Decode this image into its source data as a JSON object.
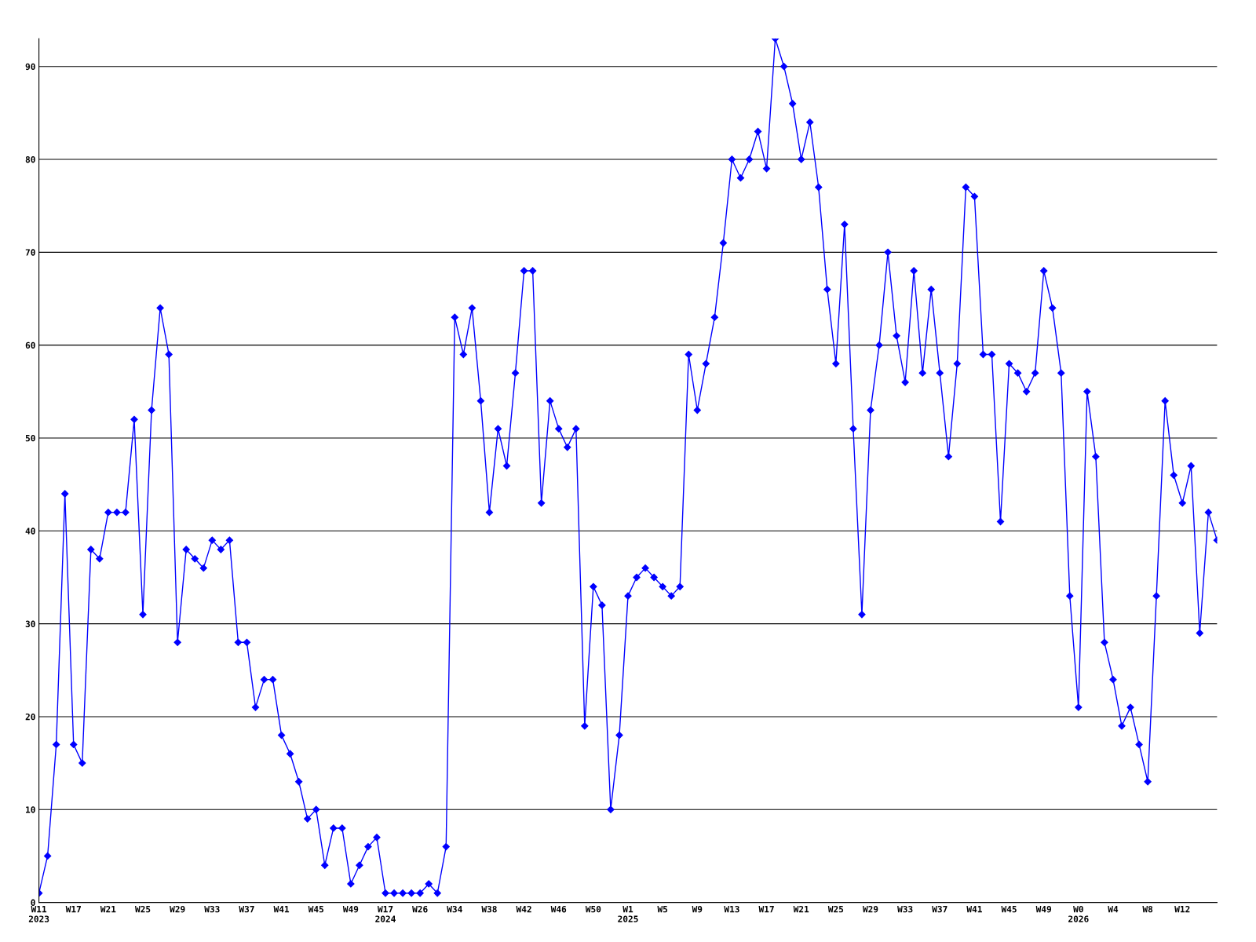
{
  "chart_data": {
    "type": "line",
    "categories": [
      "W11\n2023",
      null,
      null,
      null,
      "W17",
      null,
      null,
      null,
      "W21",
      null,
      null,
      null,
      "W25",
      null,
      null,
      null,
      "W29",
      null,
      null,
      null,
      "W33",
      null,
      null,
      null,
      "W37",
      null,
      null,
      null,
      "W41",
      null,
      null,
      null,
      "W45",
      null,
      null,
      null,
      "W49",
      null,
      null,
      null,
      "W17\n2024",
      null,
      null,
      null,
      "W26",
      null,
      null,
      null,
      "W34",
      null,
      null,
      null,
      "W38",
      null,
      null,
      null,
      "W42",
      null,
      null,
      null,
      "W46",
      null,
      null,
      null,
      "W50",
      null,
      null,
      null,
      "W1\n2025",
      null,
      null,
      null,
      "W5",
      null,
      null,
      null,
      "W9",
      null,
      null,
      null,
      "W13",
      null,
      null,
      null,
      "W17",
      null,
      null,
      null,
      "W21",
      null,
      null,
      null,
      "W25",
      null,
      null,
      null,
      "W29",
      null,
      null,
      null,
      "W33",
      null,
      null,
      null,
      "W37",
      null,
      null,
      null,
      "W41",
      null,
      null,
      null,
      "W45",
      null,
      null,
      null,
      "W49",
      null,
      null,
      null,
      "W0\n2026",
      null,
      null,
      null,
      "W4",
      null,
      null,
      null,
      "W8",
      null,
      null,
      null,
      "W12",
      null,
      null,
      null,
      null
    ],
    "series": [
      {
        "color": "#0000ff",
        "values": [
          1,
          5,
          17,
          44,
          17,
          15,
          38,
          37,
          42,
          42,
          42,
          52,
          31,
          53,
          64,
          59,
          28,
          38,
          37,
          36,
          39,
          38,
          39,
          28,
          28,
          21,
          24,
          24,
          18,
          16,
          13,
          9,
          10,
          4,
          8,
          8,
          2,
          4,
          6,
          7,
          1,
          1,
          1,
          1,
          1,
          2,
          1,
          6,
          63,
          59,
          64,
          54,
          42,
          51,
          47,
          57,
          68,
          68,
          43,
          54,
          51,
          49,
          51,
          19,
          34,
          32,
          10,
          18,
          33,
          35,
          36,
          35,
          34,
          33,
          34,
          59,
          53,
          58,
          63,
          71,
          80,
          78,
          80,
          83,
          79,
          93,
          90,
          86,
          80,
          84,
          77,
          66,
          58,
          73,
          51,
          31,
          53,
          60,
          70,
          61,
          56,
          68,
          57,
          66,
          57,
          48,
          58,
          77,
          76,
          59,
          59,
          41,
          58,
          57,
          55,
          57,
          68,
          64,
          57,
          33,
          21,
          55,
          48,
          28,
          24,
          19,
          21,
          17,
          13,
          33,
          54,
          46,
          43,
          47,
          29,
          42,
          39
        ]
      }
    ],
    "ylim": [
      0,
      93
    ],
    "yticks": [
      0,
      10,
      20,
      30,
      40,
      50,
      60,
      70,
      80,
      90
    ],
    "grid": "y",
    "marker": "diamond",
    "line_style": "solid"
  }
}
